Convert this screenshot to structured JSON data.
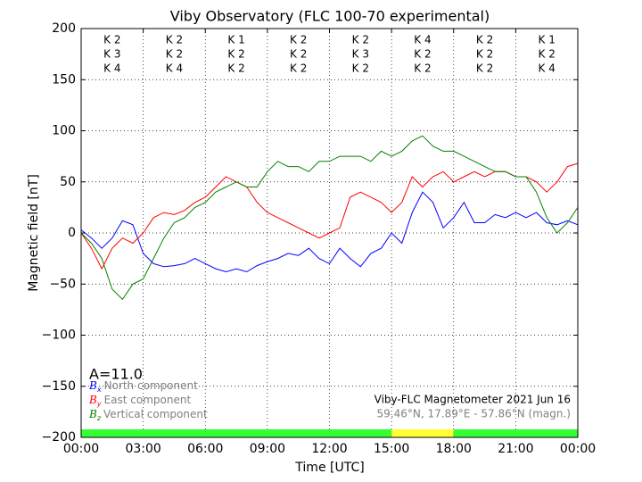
{
  "chart_data": {
    "type": "line",
    "title": "Viby Observatory (FLC 100-70 experimental)",
    "xlabel": "Time [UTC]",
    "ylabel": "Magnetic field [nT]",
    "x": [
      0,
      0.5,
      1,
      1.5,
      2,
      2.5,
      3,
      3.5,
      4,
      4.5,
      5,
      5.5,
      6,
      6.5,
      7,
      7.5,
      8,
      8.5,
      9,
      9.5,
      10,
      10.5,
      11,
      11.5,
      12,
      12.5,
      13,
      13.5,
      14,
      14.5,
      15,
      15.5,
      16,
      16.5,
      17,
      17.5,
      18,
      18.5,
      19,
      19.5,
      20,
      20.5,
      21,
      21.5,
      22,
      22.5,
      23,
      23.5,
      24
    ],
    "series": [
      {
        "name": "North component",
        "symbol": "B",
        "subscript": "x",
        "color": "#0000ff",
        "values": [
          3,
          -5,
          -15,
          -5,
          12,
          8,
          -20,
          -30,
          -33,
          -32,
          -30,
          -25,
          -30,
          -35,
          -38,
          -35,
          -38,
          -32,
          -28,
          -25,
          -20,
          -22,
          -15,
          -25,
          -30,
          -15,
          -25,
          -33,
          -20,
          -15,
          0,
          -10,
          20,
          40,
          30,
          5,
          15,
          30,
          10,
          10,
          18,
          15,
          20,
          15,
          20,
          10,
          8,
          12,
          8
        ]
      },
      {
        "name": "East component",
        "symbol": "B",
        "subscript": "y",
        "color": "#ff0000",
        "values": [
          0,
          -15,
          -35,
          -15,
          -5,
          -10,
          0,
          15,
          20,
          18,
          22,
          30,
          35,
          45,
          55,
          50,
          45,
          30,
          20,
          15,
          10,
          5,
          0,
          -5,
          0,
          5,
          35,
          40,
          35,
          30,
          20,
          30,
          55,
          45,
          55,
          60,
          50,
          55,
          60,
          55,
          60,
          60,
          55,
          55,
          50,
          40,
          50,
          65,
          68
        ]
      },
      {
        "name": "Vertical component",
        "symbol": "B",
        "subscript": "z",
        "color": "#008000",
        "values": [
          0,
          -10,
          -25,
          -55,
          -65,
          -50,
          -45,
          -25,
          -5,
          10,
          15,
          25,
          30,
          40,
          45,
          50,
          45,
          45,
          60,
          70,
          65,
          65,
          60,
          70,
          70,
          75,
          75,
          75,
          70,
          80,
          75,
          80,
          90,
          95,
          85,
          80,
          80,
          75,
          70,
          65,
          60,
          60,
          55,
          55,
          40,
          15,
          0,
          10,
          25
        ]
      }
    ],
    "xlim": [
      0,
      24
    ],
    "xticks": [
      {
        "value": 0,
        "label": "00:00"
      },
      {
        "value": 3,
        "label": "03:00"
      },
      {
        "value": 6,
        "label": "06:00"
      },
      {
        "value": 9,
        "label": "09:00"
      },
      {
        "value": 12,
        "label": "12:00"
      },
      {
        "value": 15,
        "label": "15:00"
      },
      {
        "value": 18,
        "label": "18:00"
      },
      {
        "value": 21,
        "label": "21:00"
      },
      {
        "value": 24,
        "label": "00:00"
      }
    ],
    "ylim": [
      -200,
      200
    ],
    "yticks": [
      {
        "value": -200,
        "label": "−200"
      },
      {
        "value": -150,
        "label": "−150"
      },
      {
        "value": -100,
        "label": "−100"
      },
      {
        "value": -50,
        "label": "−50"
      },
      0,
      50,
      100,
      150,
      200
    ],
    "grid": true,
    "k_index": [
      [
        "K 2",
        "K 2",
        "K 1",
        "K 2",
        "K 2",
        "K 4",
        "K 2",
        "K 1"
      ],
      [
        "K 3",
        "K 2",
        "K 2",
        "K 2",
        "K 3",
        "K 2",
        "K 2",
        "K 2"
      ],
      [
        "K 4",
        "K 4",
        "K 2",
        "K 2",
        "K 2",
        "K 2",
        "K 2",
        "K 4"
      ]
    ],
    "activity_label": "A=11.0",
    "annotation": "Viby-FLC Magnetometer 2021 Jun 16",
    "location": "59.46°N, 17.89°E - 57.86°N (magn.)",
    "status_bar": [
      {
        "start": 0,
        "end": 15,
        "color": "#33ff33"
      },
      {
        "start": 15,
        "end": 18,
        "color": "#ffff33"
      },
      {
        "start": 18,
        "end": 24,
        "color": "#33ff33"
      }
    ]
  }
}
